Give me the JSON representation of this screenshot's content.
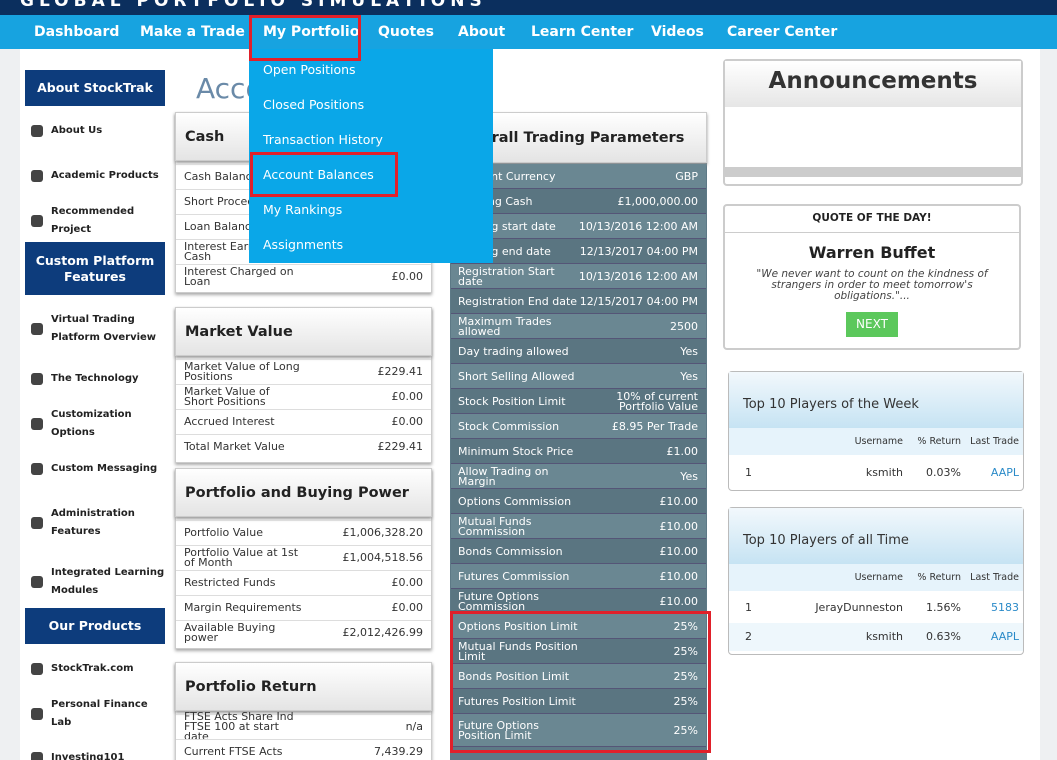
{
  "header": {
    "brand": "GLOBAL PORTFOLIO SIMULATIONS"
  },
  "nav": [
    "Dashboard",
    "Make a Trade",
    "My Portfolio",
    "Quotes",
    "About",
    "Learn Center",
    "Videos",
    "Career Center"
  ],
  "dropdown": [
    "Open Positions",
    "Closed Positions",
    "Transaction History",
    "Account Balances",
    "My Rankings",
    "Assignments"
  ],
  "sidebar": [
    {
      "title": "About StockTrak",
      "items": [
        "About Us",
        "Academic Products",
        "Recommended Project"
      ]
    },
    {
      "title": "Custom Platform Features",
      "items": [
        "Virtual Trading Platform Overview",
        "The Technology",
        "Customization Options",
        "Custom Messaging",
        "Administration Features",
        "Integrated Learning Modules"
      ]
    },
    {
      "title": "Our Products",
      "items": [
        "StockTrak.com",
        "Personal Finance Lab",
        "Investing101"
      ]
    }
  ],
  "page_title": "Account Balances",
  "panels": [
    {
      "title": "Cash",
      "rows": [
        [
          "Cash Balance"
        ],
        [
          "Short Proceeds"
        ],
        [
          "Loan Balance"
        ],
        [
          "Interest Earned on Cash"
        ],
        [
          "Interest Charged on Loan",
          "£0.00"
        ]
      ]
    },
    {
      "title": "Market Value",
      "rows": [
        [
          "Market Value of Long Positions",
          "£229.41"
        ],
        [
          "Market Value of Short Positions",
          "£0.00"
        ],
        [
          "Accrued Interest",
          "£0.00"
        ],
        [
          "Total Market Value",
          "£229.41"
        ]
      ]
    },
    {
      "title": "Portfolio and Buying Power",
      "rows": [
        [
          "Portfolio Value",
          "£1,006,328.20"
        ],
        [
          "Portfolio Value at 1st of Month",
          "£1,004,518.56"
        ],
        [
          "Restricted Funds",
          "£0.00"
        ],
        [
          "Margin Requirements",
          "£0.00"
        ],
        [
          "Available Buying power",
          "£2,012,426.99"
        ]
      ]
    },
    {
      "title": "Portfolio Return",
      "rows": [
        [
          "FTSE Acts Share Ind FTSE 100 at start date",
          "n/a"
        ],
        [
          "Current FTSE Acts",
          "7,439.29"
        ]
      ]
    }
  ],
  "trading": {
    "title": "Overall Trading Parameters",
    "rows": [
      [
        "Account Currency",
        "GBP"
      ],
      [
        "Starting Cash",
        "£1,000,000.00"
      ],
      [
        "Trading start date",
        "10/13/2016 12:00 AM"
      ],
      [
        "Trading end date",
        "12/13/2017 04:00 PM"
      ],
      [
        "Registration Start date",
        "10/13/2016 12:00 AM"
      ],
      [
        "Registration End date",
        "12/15/2017 04:00 PM"
      ],
      [
        "Maximum Trades allowed",
        "2500"
      ],
      [
        "Day trading allowed",
        "Yes"
      ],
      [
        "Short Selling Allowed",
        "Yes"
      ],
      [
        "Stock Position Limit",
        "10% of current Portfolio Value"
      ],
      [
        "Stock Commission",
        "£8.95 Per Trade"
      ],
      [
        "Minimum Stock Price",
        "£1.00"
      ],
      [
        "Allow Trading on Margin",
        "Yes"
      ],
      [
        "Options Commission",
        "£10.00"
      ],
      [
        "Mutual Funds Commission",
        "£10.00"
      ],
      [
        "Bonds Commission",
        "£10.00"
      ],
      [
        "Futures Commission",
        "£10.00"
      ],
      [
        "Future Options Commission",
        "£10.00"
      ],
      [
        "Options Position Limit",
        "25%"
      ],
      [
        "Mutual Funds Position Limit",
        "25%"
      ],
      [
        "Bonds Position Limit",
        "25%"
      ],
      [
        "Futures Position Limit",
        "25%"
      ],
      [
        "Future Options Position Limit",
        "25%"
      ]
    ]
  },
  "announcements": {
    "title": "Announcements"
  },
  "quote": {
    "heading": "QUOTE OF THE DAY!",
    "author": "Warren Buffet",
    "text": "\"We never want to count on the kindness of strangers in order to meet tomorrow's obligations.\"...",
    "button": "NEXT"
  },
  "leaderboards": [
    {
      "title": "Top 10 Players of the Week",
      "columns": [
        "Username",
        "% Return",
        "Last Trade"
      ],
      "rows": [
        [
          "1",
          "ksmith",
          "0.03%",
          "AAPL"
        ]
      ]
    },
    {
      "title": "Top 10 Players of all Time",
      "columns": [
        "Username",
        "% Return",
        "Last Trade"
      ],
      "rows": [
        [
          "1",
          "JerayDunneston",
          "1.56%",
          "5183"
        ],
        [
          "2",
          "ksmith",
          "0.63%",
          "AAPL"
        ]
      ]
    }
  ]
}
